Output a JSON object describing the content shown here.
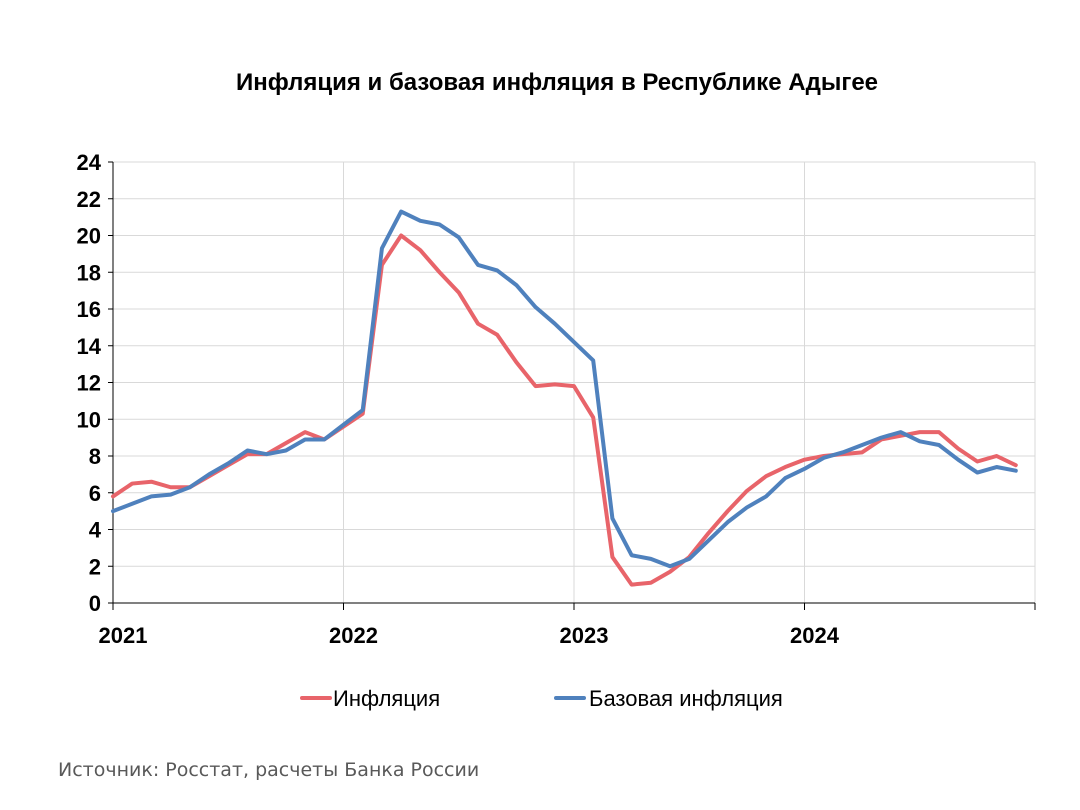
{
  "chart_data": {
    "type": "line",
    "title": "Инфляция и базовая инфляция в Республике Адыгее",
    "xlabel": "",
    "ylabel": "",
    "ylim": [
      0,
      24
    ],
    "yticks": [
      0,
      2,
      4,
      6,
      8,
      10,
      12,
      14,
      16,
      18,
      20,
      22,
      24
    ],
    "xticks": [
      "2021",
      "2022",
      "2023",
      "2024"
    ],
    "grid": true,
    "legend_position": "bottom",
    "source": "Источник: Росстат, расчеты Банка России",
    "x": [
      "2021-01",
      "2021-02",
      "2021-03",
      "2021-04",
      "2021-05",
      "2021-06",
      "2021-07",
      "2021-08",
      "2021-09",
      "2021-10",
      "2021-11",
      "2021-12",
      "2022-01",
      "2022-02",
      "2022-03",
      "2022-04",
      "2022-05",
      "2022-06",
      "2022-07",
      "2022-08",
      "2022-09",
      "2022-10",
      "2022-11",
      "2022-12",
      "2023-01",
      "2023-02",
      "2023-03",
      "2023-04",
      "2023-05",
      "2023-06",
      "2023-07",
      "2023-08",
      "2023-09",
      "2023-10",
      "2023-11",
      "2023-12",
      "2024-01",
      "2024-02",
      "2024-03",
      "2024-04",
      "2024-05",
      "2024-06",
      "2024-07",
      "2024-08",
      "2024-09",
      "2024-10",
      "2024-11",
      "2024-12"
    ],
    "series": [
      {
        "name": "Инфляция",
        "color": "#E8646A",
        "values": [
          5.8,
          6.5,
          6.6,
          6.3,
          6.3,
          6.9,
          7.5,
          8.1,
          8.1,
          8.7,
          9.3,
          8.9,
          9.6,
          10.3,
          18.4,
          20.0,
          19.2,
          18.0,
          16.9,
          15.2,
          14.6,
          13.1,
          11.8,
          11.9,
          11.8,
          10.1,
          2.5,
          1.0,
          1.1,
          1.7,
          2.5,
          3.8,
          5.0,
          6.1,
          6.9,
          7.4,
          7.8,
          8.0,
          8.1,
          8.2,
          8.9,
          9.1,
          9.3,
          9.3,
          8.4,
          7.7,
          8.0,
          7.5
        ]
      },
      {
        "name": "Базовая инфляция",
        "color": "#4F81BD",
        "values": [
          5.0,
          5.4,
          5.8,
          5.9,
          6.3,
          7.0,
          7.6,
          8.3,
          8.1,
          8.3,
          8.9,
          8.9,
          9.7,
          10.5,
          19.3,
          21.3,
          20.8,
          20.6,
          19.9,
          18.4,
          18.1,
          17.3,
          16.1,
          15.2,
          14.2,
          13.2,
          4.6,
          2.6,
          2.4,
          2.0,
          2.4,
          3.4,
          4.4,
          5.2,
          5.8,
          6.8,
          7.3,
          7.9,
          8.2,
          8.6,
          9.0,
          9.3,
          8.8,
          8.6,
          7.8,
          7.1,
          7.4,
          7.2
        ]
      }
    ]
  }
}
